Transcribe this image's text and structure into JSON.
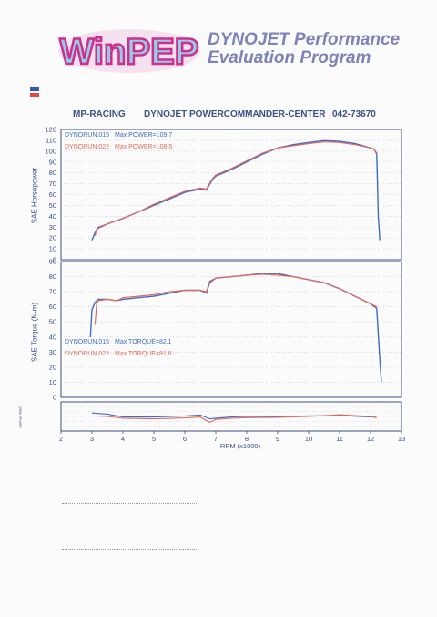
{
  "logo": {
    "text": "WinPEP"
  },
  "header": {
    "title_line1": "DYNOJET Performance",
    "title_line2": "Evaluation Program"
  },
  "subheader": {
    "left": "MP-RACING",
    "mid": "DYNOJET POWERCOMMANDER-CENTER",
    "right": "042-73670"
  },
  "colors": {
    "run1": "#3f6cc4",
    "run2": "#e46a5c",
    "axis": "#3c4e86",
    "grid": "#bfc6d8",
    "logo_fill": "#8fd0ea",
    "logo_border": "#d32d8c"
  },
  "chart_data": [
    {
      "type": "line",
      "ylabel": "SAE Horsepower",
      "ylim": [
        0,
        120
      ],
      "yticks": [
        0,
        10,
        20,
        30,
        40,
        50,
        60,
        70,
        80,
        90,
        100,
        110,
        120
      ],
      "xlim": [
        2,
        13
      ],
      "legend": [
        {
          "name": "DYNORUN.015",
          "label": "Max POWER=109.7"
        },
        {
          "name": "DYNORUN.022",
          "label": "Max POWER=108.5"
        }
      ],
      "series": [
        {
          "name": "DYNORUN.015",
          "x": [
            3.0,
            3.1,
            3.2,
            3.5,
            4.0,
            4.5,
            5.0,
            5.5,
            6.0,
            6.5,
            6.7,
            6.75,
            6.9,
            7.0,
            7.5,
            8.0,
            8.5,
            9.0,
            9.5,
            10.0,
            10.5,
            11.0,
            11.5,
            12.0,
            12.1,
            12.2,
            12.25,
            12.3
          ],
          "y": [
            18,
            25,
            29,
            33,
            38,
            44,
            50,
            56,
            62,
            65,
            64,
            67,
            74,
            77,
            83,
            90,
            97,
            103,
            106,
            108,
            109.7,
            109,
            107,
            103,
            102,
            98,
            40,
            18
          ]
        },
        {
          "name": "DYNORUN.022",
          "x": [
            3.1,
            3.15,
            3.2,
            3.5,
            4.0,
            4.5,
            5.0,
            5.5,
            6.0,
            6.5,
            6.7,
            6.75,
            6.9,
            7.0,
            7.5,
            8.0,
            8.5,
            9.0,
            9.5,
            10.0,
            10.5,
            11.0,
            11.5,
            12.0,
            12.1,
            12.2
          ],
          "y": [
            22,
            28,
            30,
            33,
            38,
            44,
            51,
            57,
            63,
            66,
            65,
            68,
            75,
            78,
            84,
            91,
            98,
            103,
            105,
            107,
            108.5,
            108,
            106,
            103,
            102,
            97
          ]
        }
      ]
    },
    {
      "type": "line",
      "ylabel": "SAE Torque (N-m)",
      "ylim": [
        0,
        90
      ],
      "yticks": [
        0,
        10,
        20,
        30,
        40,
        50,
        60,
        70,
        80,
        90
      ],
      "xlim": [
        2,
        13
      ],
      "legend": [
        {
          "name": "DYNORUN.015",
          "label": "Max TORQUE=82.1"
        },
        {
          "name": "DYNORUN.022",
          "label": "Max TORQUE=81.6"
        }
      ],
      "series": [
        {
          "name": "DYNORUN.015",
          "x": [
            2.95,
            3.0,
            3.1,
            3.2,
            3.5,
            3.8,
            4.0,
            4.5,
            5.0,
            5.5,
            6.0,
            6.5,
            6.7,
            6.8,
            7.0,
            7.5,
            8.0,
            8.5,
            9.0,
            9.5,
            10.0,
            10.5,
            11.0,
            11.5,
            12.0,
            12.2,
            12.3,
            12.35
          ],
          "y": [
            40,
            58,
            63,
            65,
            65,
            64,
            65,
            66,
            67,
            69,
            71,
            71,
            69,
            76,
            79,
            80,
            81,
            82.1,
            82,
            80,
            78,
            76,
            72,
            67,
            62,
            59,
            25,
            10
          ]
        },
        {
          "name": "DYNORUN.022",
          "x": [
            3.1,
            3.15,
            3.2,
            3.5,
            3.8,
            4.0,
            4.5,
            5.0,
            5.5,
            6.0,
            6.5,
            6.7,
            6.8,
            7.0,
            7.5,
            8.0,
            8.5,
            9.0,
            9.5,
            10.0,
            10.5,
            11.0,
            11.5,
            12.0,
            12.2
          ],
          "y": [
            48,
            62,
            64,
            65,
            64,
            66,
            67,
            68,
            70,
            71,
            71,
            70,
            77,
            79,
            80,
            81,
            81.6,
            81,
            80,
            78,
            76,
            72,
            67,
            62,
            60
          ]
        }
      ]
    },
    {
      "type": "line",
      "ylabel": "Air/Fuel Ratio",
      "xlabel": "RPM (x1000)",
      "xlim": [
        2,
        13
      ],
      "xticks": [
        2,
        3,
        4,
        5,
        6,
        7,
        8,
        9,
        10,
        11,
        12,
        13
      ],
      "ylim": [
        0,
        1
      ],
      "series": [
        {
          "name": "DYNORUN.015",
          "x": [
            3.0,
            3.5,
            4.0,
            5.0,
            6.0,
            6.5,
            6.8,
            7.0,
            7.5,
            8.0,
            9.0,
            10.0,
            11.0,
            12.0,
            12.2
          ],
          "y": [
            0.62,
            0.58,
            0.48,
            0.48,
            0.52,
            0.55,
            0.42,
            0.44,
            0.48,
            0.5,
            0.5,
            0.52,
            0.53,
            0.48,
            0.52
          ]
        },
        {
          "name": "DYNORUN.022",
          "x": [
            3.1,
            3.5,
            4.0,
            5.0,
            6.0,
            6.5,
            6.8,
            7.0,
            7.5,
            8.0,
            9.0,
            10.0,
            11.0,
            12.0,
            12.2
          ],
          "y": [
            0.52,
            0.5,
            0.44,
            0.42,
            0.45,
            0.48,
            0.3,
            0.4,
            0.44,
            0.46,
            0.47,
            0.5,
            0.56,
            0.5,
            0.46
          ]
        }
      ]
    }
  ]
}
